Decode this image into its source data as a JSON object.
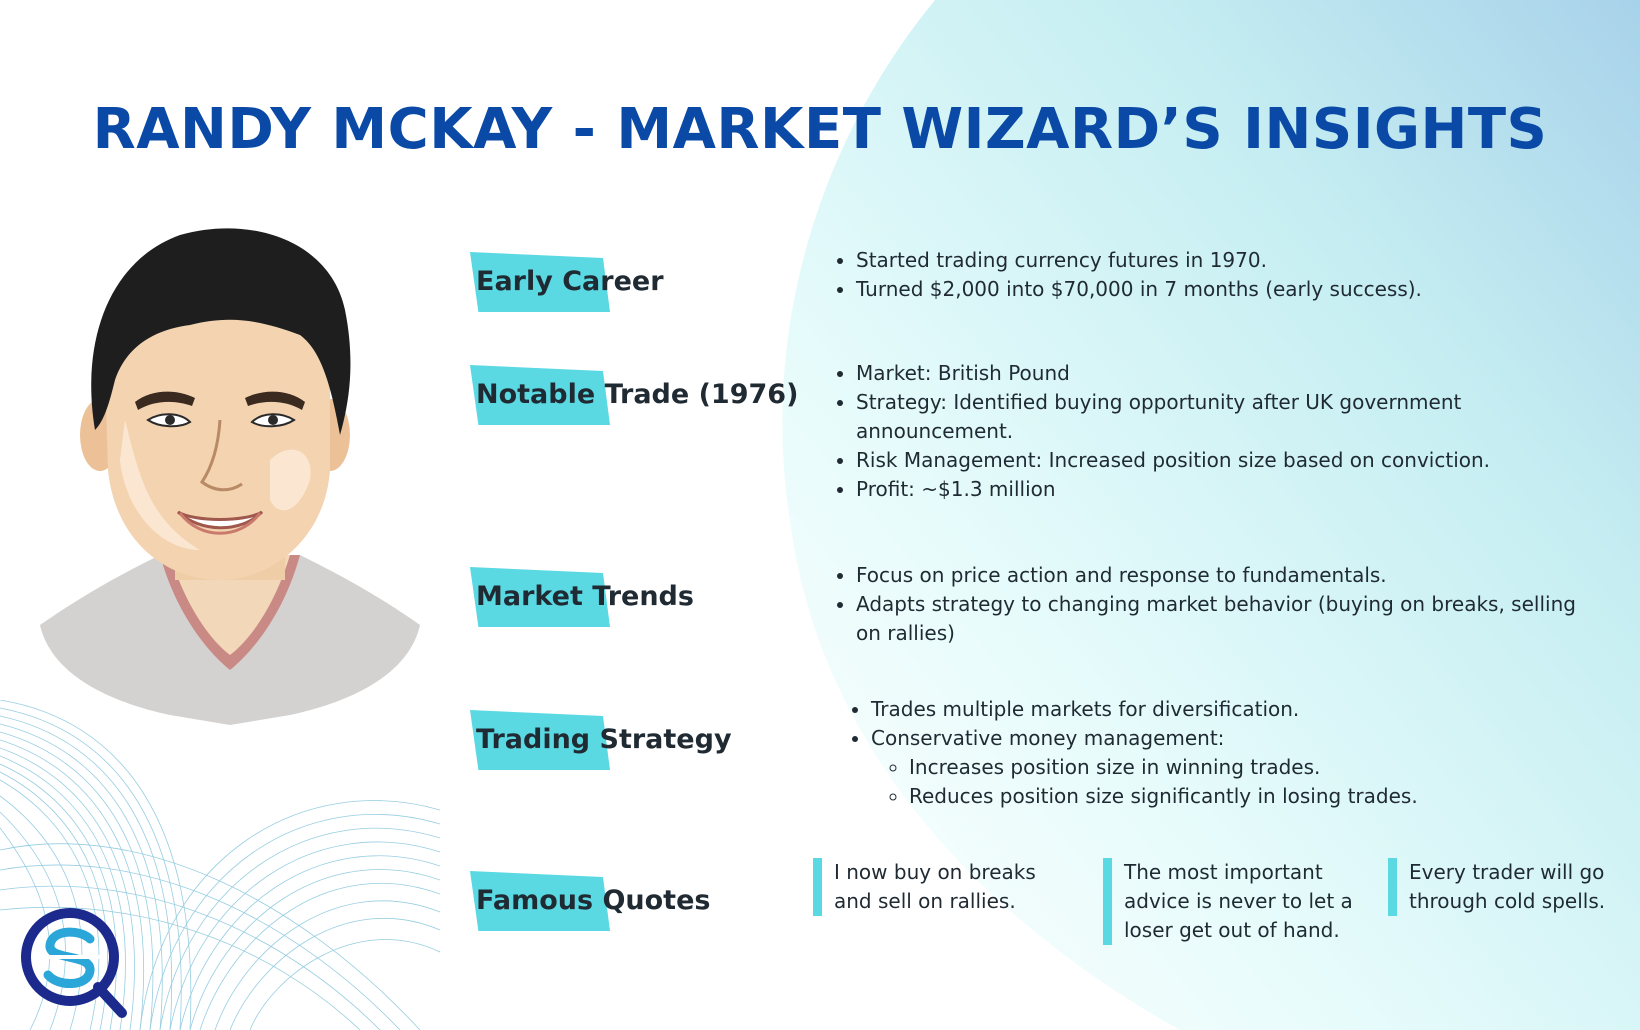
{
  "title": "RANDY MCKAY - MARKET WIZARD’S INSIGHTS",
  "colors": {
    "title": "#0a4aa6",
    "highlight": "#5ad9e3",
    "text": "#1f2a33",
    "gradient_start": "#e3fbfc",
    "gradient_end": "#a7d3ea"
  },
  "sections": {
    "early_career": {
      "label": "Early Career",
      "bullets": [
        "Started trading currency futures in 1970.",
        "Turned $2,000 into $70,000 in 7 months (early success)."
      ]
    },
    "notable_trade": {
      "label": "Notable Trade (1976)",
      "bullets": [
        "Market: British Pound",
        "Strategy: Identified buying opportunity after UK government announcement.",
        "Risk Management: Increased position size based on conviction.",
        "Profit: ~$1.3 million"
      ]
    },
    "market_trends": {
      "label": "Market Trends",
      "bullets": [
        "Focus on price action and response to fundamentals.",
        "Adapts strategy to changing market behavior (buying on breaks, selling on rallies)"
      ]
    },
    "trading_strategy": {
      "label": "Trading Strategy",
      "bullets": [
        "Trades multiple markets for diversification.",
        "Conservative money management:"
      ],
      "sub_bullets": [
        "Increases position size in winning trades.",
        "Reduces position size significantly in losing trades."
      ]
    },
    "famous_quotes": {
      "label": "Famous Quotes",
      "quotes": [
        "I now buy on breaks and sell on rallies.",
        "The most important advice is never to let a loser get out of hand.",
        "Every trader will go through cold spells."
      ]
    }
  },
  "icons": {
    "portrait": "randy-mckay-portrait",
    "logo": "sq-logo-icon",
    "decoration": "wave-mesh-decoration"
  }
}
